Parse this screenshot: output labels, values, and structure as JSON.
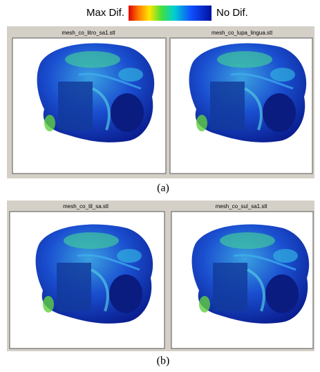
{
  "legend": {
    "max_label": "Max Dif.",
    "min_label": "No Dif."
  },
  "panels": [
    {
      "caption": "(a)",
      "views": [
        {
          "title": "mesh_co_litro_sa1.stl"
        },
        {
          "title": "mesh_co_lupa_lingua.stl"
        }
      ]
    },
    {
      "caption": "(b)",
      "views": [
        {
          "title": "mesh_co_til_sa.stl"
        },
        {
          "title": "mesh_co_sul_sa1.stl"
        }
      ]
    }
  ]
}
